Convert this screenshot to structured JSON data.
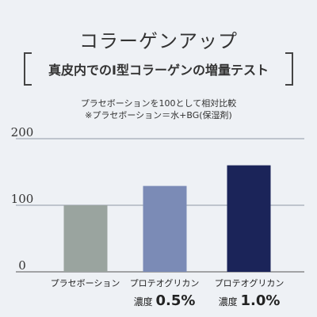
{
  "title": "コラーゲンアップ",
  "subtitle": "真皮内でのI型コラーゲンの増量テスト",
  "note1": "プラセボーションを100として相対比較",
  "note2": "※プラセボーション＝水+BG(保湿剤)",
  "chart_data": {
    "type": "bar",
    "categories": [
      "プラセボーション",
      "プロテオグリカン 濃度 0.5%",
      "プロテオグリカン 濃度 1.0%"
    ],
    "values": [
      100,
      129,
      160
    ],
    "ylim": [
      0,
      200
    ],
    "yticks": [
      "0",
      "100",
      "200"
    ],
    "grid": true,
    "colors": [
      "#9aa49f",
      "#7b8bb6",
      "#1b2459"
    ]
  },
  "labels": [
    {
      "line1": "プラセボーション",
      "prefix": "",
      "pct": ""
    },
    {
      "line1": "プロテオグリカン",
      "prefix": "濃度",
      "pct": "0.5%"
    },
    {
      "line1": "プロテオグリカン",
      "prefix": "濃度",
      "pct": "1.0%"
    }
  ]
}
